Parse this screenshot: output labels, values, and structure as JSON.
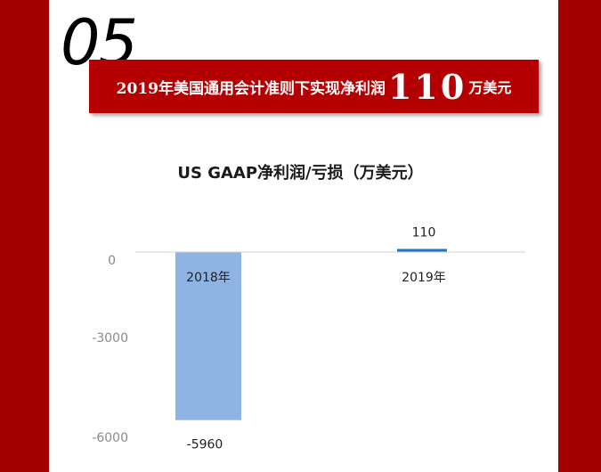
{
  "section_number": "05",
  "banner": {
    "text": "2019年美国通用会计准则下实现净利润",
    "value": "110",
    "unit": "万美元"
  },
  "colors": {
    "frame": "#a30000",
    "banner": "#b40003",
    "bar_2018": "#8fb4e3",
    "bar_2019": "#1f77c9"
  },
  "chart_data": {
    "type": "bar",
    "title": "US GAAP净利润/亏损（万美元）",
    "categories": [
      "2018年",
      "2019年"
    ],
    "values": [
      -5960,
      110
    ],
    "yticks": [
      "0",
      "-3000",
      "-6000"
    ],
    "ylim": [
      -6000,
      0
    ],
    "grid": false
  }
}
